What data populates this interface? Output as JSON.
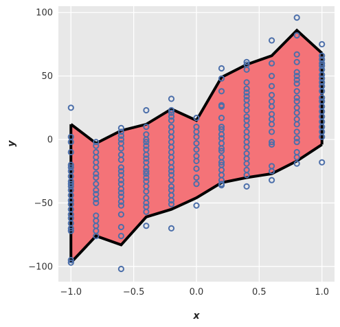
{
  "chart_data": {
    "type": "scatter",
    "title": "",
    "xlabel": "x",
    "ylabel": "y",
    "xlim": [
      -1.1,
      1.1
    ],
    "ylim": [
      -112,
      105
    ],
    "grid": true,
    "x_ticks": [
      -1.0,
      -0.5,
      0.0,
      0.5,
      1.0
    ],
    "x_tick_labels": [
      "−1.0",
      "−0.5",
      "0.0",
      "0.5",
      "1.0"
    ],
    "y_ticks": [
      -100,
      -50,
      0,
      50,
      100
    ],
    "y_tick_labels": [
      "−100",
      "−50",
      "0",
      "50",
      "100"
    ],
    "colors": {
      "band_fill": "#f47378",
      "band_edge": "#000000",
      "marker_edge": "#4c6faa",
      "plot_background": "#e8e8e8",
      "grid": "#ffffff"
    },
    "band": {
      "x": [
        -1.0,
        -0.8,
        -0.6,
        -0.4,
        -0.2,
        0.0,
        0.2,
        0.4,
        0.6,
        0.8,
        1.0
      ],
      "upper": [
        12,
        -3,
        7,
        12,
        24,
        15,
        49,
        59,
        66,
        86,
        68
      ],
      "lower": [
        -97,
        -76,
        -83,
        -61,
        -55,
        -46,
        -34,
        -30,
        -27,
        -17,
        -4
      ]
    },
    "points": [
      {
        "x": -1.0,
        "y": [
          25,
          2,
          -2,
          -10,
          -20,
          -22,
          -25,
          -29,
          -33,
          -35,
          -37,
          -40,
          -44,
          -48,
          -51,
          -55,
          -59,
          -62,
          -66,
          -70,
          -72,
          -95,
          -97
        ]
      },
      {
        "x": -0.8,
        "y": [
          -2,
          -5,
          -10,
          -14,
          -18,
          -22,
          -27,
          -30,
          -35,
          -40,
          -43,
          -47,
          -50,
          -60,
          -64,
          -68,
          -72,
          -76
        ]
      },
      {
        "x": -0.6,
        "y": [
          9,
          6,
          3,
          0,
          -3,
          -7,
          -12,
          -16,
          -22,
          -25,
          -28,
          -32,
          -35,
          -39,
          -42,
          -45,
          -49,
          -52,
          -59,
          -69,
          -76,
          -102
        ]
      },
      {
        "x": -0.4,
        "y": [
          23,
          10,
          4,
          0,
          -2,
          -5,
          -8,
          -12,
          -15,
          -18,
          -22,
          -25,
          -27,
          -30,
          -33,
          -37,
          -41,
          -46,
          -50,
          -53,
          -57,
          -68
        ]
      },
      {
        "x": -0.2,
        "y": [
          32,
          23,
          21,
          18,
          15,
          10,
          6,
          2,
          -2,
          -6,
          -10,
          -14,
          -18,
          -22,
          -25,
          -28,
          -32,
          -37,
          -40,
          -44,
          -48,
          -51,
          -70
        ]
      },
      {
        "x": 0.0,
        "y": [
          17,
          10,
          6,
          2,
          -3,
          -8,
          -13,
          -17,
          -23,
          -30,
          -35,
          -52
        ]
      },
      {
        "x": 0.2,
        "y": [
          56,
          48,
          38,
          27,
          26,
          17,
          10,
          8,
          4,
          1,
          -3,
          -7,
          -9,
          -14,
          -18,
          -20,
          -24,
          -28,
          -32,
          -35,
          -36
        ]
      },
      {
        "x": 0.4,
        "y": [
          61,
          59,
          55,
          45,
          40,
          37,
          34,
          31,
          27,
          23,
          18,
          15,
          11,
          6,
          2,
          -2,
          -6,
          -11,
          -15,
          -19,
          -24,
          -28,
          -37
        ]
      },
      {
        "x": 0.6,
        "y": [
          78,
          60,
          50,
          42,
          35,
          30,
          26,
          20,
          16,
          12,
          6,
          -2,
          -4,
          -21,
          -25,
          -32
        ]
      },
      {
        "x": 0.8,
        "y": [
          96,
          82,
          67,
          61,
          53,
          50,
          47,
          44,
          38,
          33,
          30,
          25,
          21,
          16,
          12,
          6,
          1,
          -2,
          -10,
          -14,
          -19
        ]
      },
      {
        "x": 1.0,
        "y": [
          75,
          66,
          63,
          60,
          58,
          55,
          51,
          48,
          45,
          42,
          38,
          33,
          30,
          26,
          22,
          18,
          14,
          10,
          6,
          2,
          -18
        ]
      }
    ]
  }
}
